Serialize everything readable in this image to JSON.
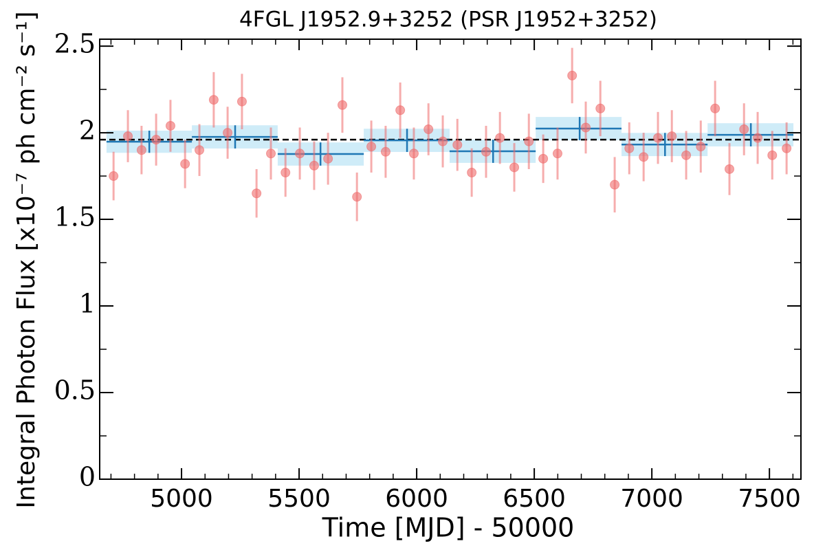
{
  "chart_data": {
    "type": "lightcurve",
    "title": "4FGL J1952.9+3252 (PSR J1952+3252)",
    "x_label": "Time [MJD] - 50000",
    "y_label": "Integral Photon Flux [x10⁻⁷ ph cm⁻² s⁻¹]",
    "xlim": [
      4652,
      7634
    ],
    "ylim": [
      0,
      2.54
    ],
    "xticks": [
      5000,
      5500,
      6000,
      6500,
      7000,
      7500
    ],
    "xminorticks": [
      4700,
      4800,
      4900,
      5100,
      5200,
      5300,
      5400,
      5600,
      5700,
      5800,
      5900,
      6100,
      6200,
      6300,
      6400,
      6600,
      6700,
      6800,
      6900,
      7100,
      7200,
      7300,
      7400,
      7600
    ],
    "yticks": [
      0,
      0.5,
      1,
      1.5,
      2,
      2.5
    ],
    "yminorticks": [
      0.25,
      0.75,
      1.25,
      1.75,
      2.25
    ],
    "mean_line": 1.96,
    "points": {
      "color": "#ee6a6a",
      "x": [
        4711,
        4772,
        4830,
        4892,
        4953,
        5015,
        5076,
        5137,
        5196,
        5257,
        5319,
        5380,
        5442,
        5503,
        5564,
        5623,
        5684,
        5746,
        5807,
        5868,
        5930,
        5988,
        6050,
        6111,
        6173,
        6234,
        6295,
        6354,
        6415,
        6477,
        6538,
        6599,
        6661,
        6719,
        6781,
        6842,
        6904,
        6965,
        7026,
        7085,
        7146,
        7208,
        7269,
        7330,
        7392,
        7450,
        7512,
        7573
      ],
      "y": [
        1.75,
        1.98,
        1.9,
        1.96,
        2.04,
        1.82,
        1.9,
        2.19,
        2.0,
        2.18,
        1.65,
        1.88,
        1.77,
        1.88,
        1.81,
        1.85,
        2.16,
        1.63,
        1.92,
        1.89,
        2.13,
        1.88,
        2.02,
        1.95,
        1.93,
        1.77,
        1.89,
        1.97,
        1.8,
        1.95,
        1.85,
        1.88,
        2.33,
        2.03,
        2.14,
        1.7,
        1.91,
        1.86,
        1.97,
        1.98,
        1.87,
        1.92,
        2.14,
        1.79,
        2.02,
        1.97,
        1.87,
        1.91
      ],
      "yerr": [
        0.14,
        0.15,
        0.14,
        0.15,
        0.15,
        0.14,
        0.15,
        0.16,
        0.15,
        0.16,
        0.14,
        0.15,
        0.14,
        0.15,
        0.14,
        0.15,
        0.16,
        0.14,
        0.15,
        0.15,
        0.16,
        0.15,
        0.15,
        0.15,
        0.15,
        0.14,
        0.15,
        0.15,
        0.14,
        0.16,
        0.14,
        0.15,
        0.16,
        0.15,
        0.16,
        0.16,
        0.15,
        0.14,
        0.15,
        0.15,
        0.14,
        0.15,
        0.16,
        0.15,
        0.15,
        0.15,
        0.14,
        0.15
      ]
    },
    "binned": {
      "color": "#1f77b4",
      "band_color": "#87cfee",
      "x": [
        4863,
        5228,
        5591,
        5959,
        6325,
        6693,
        7056,
        7421
      ],
      "xlo": [
        4681,
        5044,
        5409,
        5775,
        6140,
        6506,
        6871,
        7237
      ],
      "xhi": [
        5044,
        5409,
        5775,
        6140,
        6506,
        6871,
        7237,
        7602
      ],
      "y": [
        1.948,
        1.976,
        1.877,
        1.956,
        1.893,
        2.024,
        1.932,
        1.988
      ],
      "yerr": [
        0.064,
        0.067,
        0.067,
        0.067,
        0.067,
        0.067,
        0.067,
        0.067
      ]
    }
  }
}
